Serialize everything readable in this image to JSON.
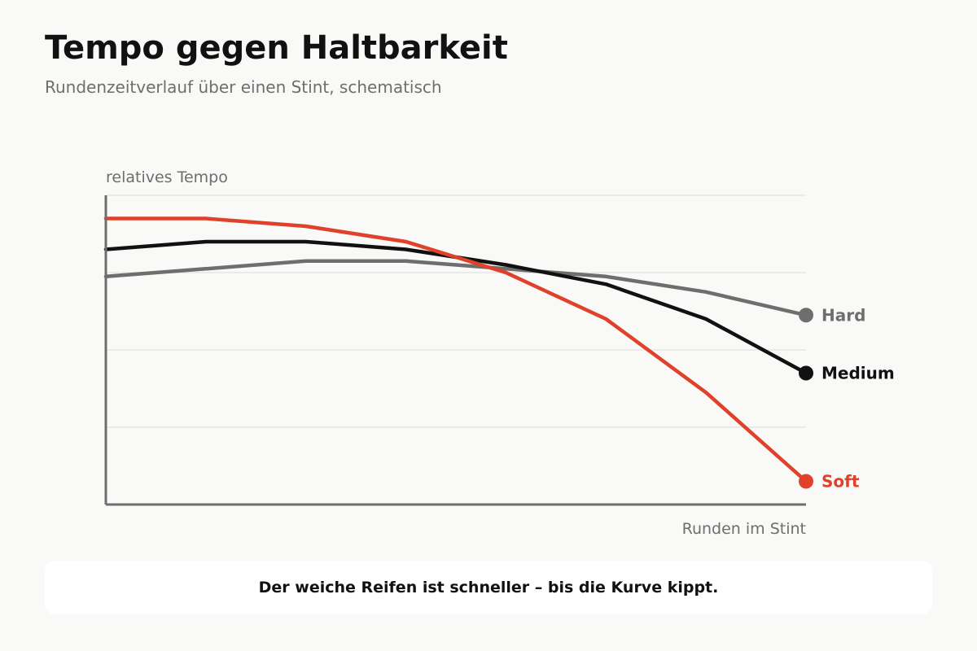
{
  "header": {
    "title": "Tempo gegen Haltbarkeit",
    "subtitle": "Rundenzeitverlauf über einen Stint, schematisch"
  },
  "chart_data": {
    "type": "line",
    "title": "Tempo gegen Haltbarkeit",
    "subtitle": "Rundenzeitverlauf über einen Stint, schematisch",
    "ylabel": "relatives Tempo",
    "xlabel": "Runden im Stint",
    "x": [
      0,
      1,
      2,
      3,
      4,
      5,
      6,
      7
    ],
    "xlim": [
      0,
      7
    ],
    "ylim": [
      0,
      4
    ],
    "grid": true,
    "legend": "direct labels at line ends",
    "series": [
      {
        "name": "Soft",
        "color": "#e0412b",
        "values": [
          3.7,
          3.7,
          3.6,
          3.4,
          3.0,
          2.4,
          1.45,
          0.3
        ]
      },
      {
        "name": "Medium",
        "color": "#111111",
        "values": [
          3.3,
          3.4,
          3.4,
          3.3,
          3.1,
          2.85,
          2.4,
          1.7
        ]
      },
      {
        "name": "Hard",
        "color": "#6e6e6e",
        "values": [
          2.95,
          3.05,
          3.15,
          3.15,
          3.05,
          2.95,
          2.75,
          2.45
        ]
      }
    ]
  },
  "caption": {
    "text": "Der weiche Reifen ist schneller – bis die Kurve kippt."
  },
  "colors": {
    "background": "#f9f9f7",
    "axis": "#6e6e6e",
    "grid": "#e6e6e4"
  }
}
